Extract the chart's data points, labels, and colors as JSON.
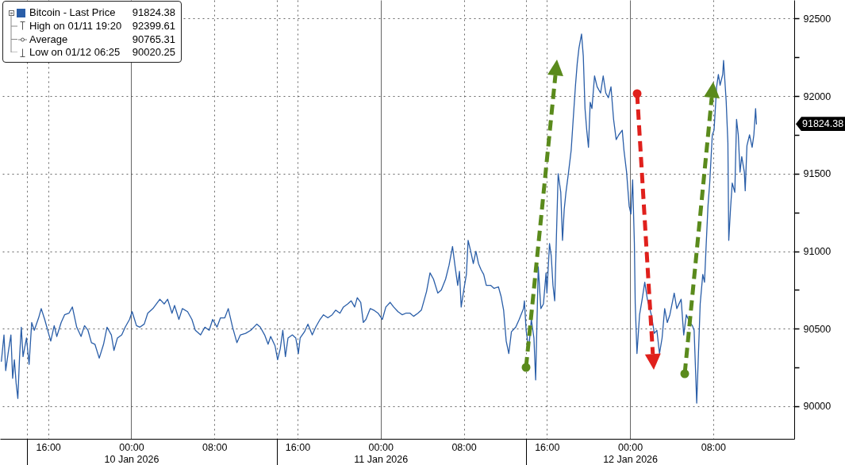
{
  "chart_data": {
    "type": "line",
    "x": [
      "2026-01-09T11:30",
      "2026-01-09T11:45",
      "2026-01-09T11:55",
      "2026-01-09T12:10",
      "2026-01-09T12:25",
      "2026-01-09T12:35",
      "2026-01-09T12:45",
      "2026-01-09T12:55",
      "2026-01-09T13:05",
      "2026-01-09T13:15",
      "2026-01-09T13:25",
      "2026-01-09T13:35",
      "2026-01-09T13:55",
      "2026-01-09T14:10",
      "2026-01-09T14:25",
      "2026-01-09T14:40",
      "2026-01-09T15:05",
      "2026-01-09T15:20",
      "2026-01-09T15:40",
      "2026-01-09T16:05",
      "2026-01-09T16:15",
      "2026-01-09T16:35",
      "2026-01-09T16:50",
      "2026-01-09T17:15",
      "2026-01-09T17:35",
      "2026-01-09T18:00",
      "2026-01-09T18:20",
      "2026-01-09T18:45",
      "2026-01-09T19:10",
      "2026-01-09T19:30",
      "2026-01-09T19:50",
      "2026-01-09T20:10",
      "2026-01-09T20:30",
      "2026-01-09T20:55",
      "2026-01-09T21:20",
      "2026-01-09T21:40",
      "2026-01-09T22:05",
      "2026-01-09T22:20",
      "2026-01-09T22:40",
      "2026-01-09T23:05",
      "2026-01-09T23:25",
      "2026-01-09T23:50",
      "2026-01-10T00:05",
      "2026-01-10T00:30",
      "2026-01-10T00:50",
      "2026-01-10T01:15",
      "2026-01-10T01:35",
      "2026-01-10T02:05",
      "2026-01-10T02:45",
      "2026-01-10T03:10",
      "2026-01-10T03:30",
      "2026-01-10T03:55",
      "2026-01-10T04:10",
      "2026-01-10T04:35",
      "2026-01-10T04:55",
      "2026-01-10T05:25",
      "2026-01-10T05:50",
      "2026-01-10T06:10",
      "2026-01-10T06:40",
      "2026-01-10T07:05",
      "2026-01-10T07:30",
      "2026-01-10T07:50",
      "2026-01-10T08:15",
      "2026-01-10T08:35",
      "2026-01-10T09:00",
      "2026-01-10T09:20",
      "2026-01-10T09:45",
      "2026-01-10T10:10",
      "2026-01-10T10:30",
      "2026-01-10T11:00",
      "2026-01-10T11:30",
      "2026-01-10T12:05",
      "2026-01-10T12:25",
      "2026-01-10T12:50",
      "2026-01-10T13:10",
      "2026-01-10T13:25",
      "2026-01-10T13:50",
      "2026-01-10T14:05",
      "2026-01-10T14:20",
      "2026-01-10T14:35",
      "2026-01-10T14:50",
      "2026-01-10T15:05",
      "2026-01-10T15:30",
      "2026-01-10T15:50",
      "2026-01-10T16:05",
      "2026-01-10T16:15",
      "2026-01-10T16:40",
      "2026-01-10T17:00",
      "2026-01-10T17:25",
      "2026-01-10T17:45",
      "2026-01-10T18:10",
      "2026-01-10T18:30",
      "2026-01-10T18:55",
      "2026-01-10T19:20",
      "2026-01-10T19:40",
      "2026-01-10T20:05",
      "2026-01-10T20:25",
      "2026-01-10T20:50",
      "2026-01-10T21:10",
      "2026-01-10T21:30",
      "2026-01-10T21:45",
      "2026-01-10T22:05",
      "2026-01-10T22:20",
      "2026-01-10T22:35",
      "2026-01-10T23:00",
      "2026-01-10T23:20",
      "2026-01-10T23:45",
      "2026-01-11T00:10",
      "2026-01-11T00:30",
      "2026-01-11T00:55",
      "2026-01-11T01:15",
      "2026-01-11T01:40",
      "2026-01-11T02:05",
      "2026-01-11T02:25",
      "2026-01-11T02:50",
      "2026-01-11T03:10",
      "2026-01-11T03:35",
      "2026-01-11T03:55",
      "2026-01-11T04:10",
      "2026-01-11T04:25",
      "2026-01-11T04:45",
      "2026-01-11T05:05",
      "2026-01-11T05:30",
      "2026-01-11T05:50",
      "2026-01-11T06:15",
      "2026-01-11T06:35",
      "2026-01-11T06:55",
      "2026-01-11T07:10",
      "2026-01-11T07:25",
      "2026-01-11T07:35",
      "2026-01-11T07:45",
      "2026-01-11T08:00",
      "2026-01-11T08:15",
      "2026-01-11T08:25",
      "2026-01-11T08:40",
      "2026-01-11T08:55",
      "2026-01-11T09:10",
      "2026-01-11T09:25",
      "2026-01-11T09:40",
      "2026-01-11T09:55",
      "2026-01-11T10:10",
      "2026-01-11T10:35",
      "2026-01-11T10:55",
      "2026-01-11T11:20",
      "2026-01-11T11:35",
      "2026-01-11T11:50",
      "2026-01-11T12:05",
      "2026-01-11T12:20",
      "2026-01-11T12:35",
      "2026-01-11T13:00",
      "2026-01-11T13:20",
      "2026-01-11T13:45",
      "2026-01-11T13:50",
      "2026-01-11T14:00",
      "2026-01-11T14:15",
      "2026-01-11T14:30",
      "2026-01-11T14:45",
      "2026-01-11T14:55",
      "2026-01-11T15:10",
      "2026-01-11T15:25",
      "2026-01-11T15:40",
      "2026-01-11T15:55",
      "2026-01-11T16:00",
      "2026-01-11T16:15",
      "2026-01-11T16:25",
      "2026-01-11T16:35",
      "2026-01-11T16:45",
      "2026-01-11T16:55",
      "2026-01-11T17:05",
      "2026-01-11T17:20",
      "2026-01-11T17:30",
      "2026-01-11T17:40",
      "2026-01-11T17:50",
      "2026-01-11T18:05",
      "2026-01-11T18:20",
      "2026-01-11T18:30",
      "2026-01-11T18:45",
      "2026-01-11T18:55",
      "2026-01-11T19:05",
      "2026-01-11T19:20",
      "2026-01-11T19:30",
      "2026-01-11T19:40",
      "2026-01-11T19:50",
      "2026-01-11T20:00",
      "2026-01-11T20:10",
      "2026-01-11T20:20",
      "2026-01-11T20:35",
      "2026-01-11T20:50",
      "2026-01-11T21:10",
      "2026-01-11T21:25",
      "2026-01-11T21:40",
      "2026-01-11T21:55",
      "2026-01-11T22:10",
      "2026-01-11T22:25",
      "2026-01-11T22:40",
      "2026-01-11T22:55",
      "2026-01-11T23:15",
      "2026-01-11T23:25",
      "2026-01-11T23:40",
      "2026-01-11T23:55",
      "2026-01-12T00:05",
      "2026-01-12T00:15",
      "2026-01-12T00:25",
      "2026-01-12T00:30",
      "2026-01-12T00:40",
      "2026-01-12T00:55",
      "2026-01-12T01:10",
      "2026-01-12T01:25",
      "2026-01-12T01:40",
      "2026-01-12T02:05",
      "2026-01-12T02:20",
      "2026-01-12T02:35",
      "2026-01-12T02:50",
      "2026-01-12T03:05",
      "2026-01-12T03:20",
      "2026-01-12T03:35",
      "2026-01-12T03:50",
      "2026-01-12T04:15",
      "2026-01-12T04:30",
      "2026-01-12T04:55",
      "2026-01-12T05:10",
      "2026-01-12T05:25",
      "2026-01-12T05:45",
      "2026-01-12T06:00",
      "2026-01-12T06:10",
      "2026-01-12T06:25",
      "2026-01-12T06:35",
      "2026-01-12T06:45",
      "2026-01-12T07:00",
      "2026-01-12T07:10",
      "2026-01-12T07:20",
      "2026-01-12T07:30",
      "2026-01-12T07:40",
      "2026-01-12T07:55",
      "2026-01-12T08:05",
      "2026-01-12T08:20",
      "2026-01-12T08:30",
      "2026-01-12T08:40",
      "2026-01-12T08:55",
      "2026-01-12T09:00",
      "2026-01-12T09:15",
      "2026-01-12T09:25",
      "2026-01-12T09:30",
      "2026-01-12T09:40",
      "2026-01-12T09:50",
      "2026-01-12T10:05",
      "2026-01-12T10:15",
      "2026-01-12T10:25",
      "2026-01-12T10:35",
      "2026-01-12T10:45",
      "2026-01-12T11:00",
      "2026-01-12T11:05",
      "2026-01-12T11:15",
      "2026-01-12T11:30",
      "2026-01-12T11:45",
      "2026-01-12T11:55",
      "2026-01-12T12:05",
      "2026-01-12T12:10"
    ],
    "series": [
      {
        "name": "Bitcoin - Last Price",
        "color": "#2a5ea8",
        "values": [
          90290,
          90460,
          90230,
          90350,
          90460,
          90180,
          90300,
          90150,
          90050,
          90320,
          90510,
          90320,
          90440,
          90270,
          90540,
          90490,
          90570,
          90630,
          90560,
          90460,
          90420,
          90520,
          90450,
          90540,
          90590,
          90600,
          90640,
          90510,
          90450,
          90520,
          90490,
          90410,
          90400,
          90310,
          90400,
          90510,
          90460,
          90360,
          90440,
          90460,
          90510,
          90560,
          90610,
          90520,
          90510,
          90530,
          90600,
          90630,
          90690,
          90660,
          90690,
          90600,
          90650,
          90560,
          90630,
          90610,
          90560,
          90490,
          90460,
          90510,
          90490,
          90560,
          90510,
          90570,
          90570,
          90630,
          90510,
          90410,
          90460,
          90470,
          90490,
          90530,
          90510,
          90460,
          90400,
          90450,
          90390,
          90300,
          90370,
          90490,
          90320,
          90440,
          90460,
          90440,
          90340,
          90440,
          90480,
          90530,
          90460,
          90510,
          90560,
          90590,
          90570,
          90590,
          90620,
          90600,
          90640,
          90660,
          90680,
          90640,
          90700,
          90670,
          90540,
          90560,
          90630,
          90620,
          90600,
          90560,
          90640,
          90670,
          90640,
          90610,
          90590,
          90600,
          90600,
          90580,
          90600,
          90620,
          90680,
          90740,
          90860,
          90820,
          90730,
          90750,
          90820,
          90910,
          91030,
          90900,
          90780,
          90870,
          90640,
          90750,
          90850,
          91070,
          91000,
          90920,
          91000,
          90920,
          90880,
          90850,
          90780,
          90780,
          90760,
          90770,
          90710,
          90620,
          90420,
          90340,
          90480,
          90510,
          90560,
          90630,
          90680,
          90490,
          90370,
          90560,
          90440,
          90170,
          90900,
          90630,
          90660,
          90860,
          90730,
          91050,
          90970,
          90780,
          90680,
          91100,
          91500,
          91380,
          91070,
          91270,
          91380,
          91510,
          91650,
          91820,
          92070,
          92210,
          92310,
          92400,
          92260,
          91920,
          91780,
          91670,
          91960,
          91920,
          92130,
          92060,
          92020,
          92130,
          92020,
          91990,
          92060,
          91850,
          91720,
          91750,
          91780,
          91650,
          91510,
          91290,
          91240,
          91460,
          91050,
          90660,
          90340,
          90590,
          90690,
          90800,
          90690,
          90580,
          90470,
          90490,
          90340,
          90440,
          90630,
          90540,
          90590,
          90730,
          90630,
          90690,
          90460,
          90590,
          90540,
          90520,
          90490,
          90020,
          90340,
          90660,
          90850,
          90800,
          91050,
          91290,
          91440,
          91750,
          91780,
          92060,
          92140,
          92070,
          92140,
          92230,
          91970,
          91700,
          91070,
          91270,
          91440,
          91380,
          91850,
          91750,
          91510,
          91610,
          91510,
          91390,
          91680,
          91750,
          91670,
          91750,
          91920,
          91820
        ]
      }
    ],
    "xlim": [
      "2026-01-09T11:22",
      "2026-01-12T15:48"
    ],
    "ylim": [
      89790,
      92620
    ],
    "xticks": [
      {
        "value": "2026-01-09T14:00",
        "label": null
      },
      {
        "value": "2026-01-09T16:00",
        "label": "16:00"
      },
      {
        "value": "2026-01-10T00:00",
        "label": "00:00\n10 Jan 2026"
      },
      {
        "value": "2026-01-10T08:00",
        "label": "08:00"
      },
      {
        "value": "2026-01-10T14:00",
        "label": null
      },
      {
        "value": "2026-01-10T16:00",
        "label": "16:00"
      },
      {
        "value": "2026-01-11T00:00",
        "label": "00:00\n11 Jan 2026"
      },
      {
        "value": "2026-01-11T08:00",
        "label": "08:00"
      },
      {
        "value": "2026-01-11T14:00",
        "label": null
      },
      {
        "value": "2026-01-11T16:00",
        "label": "16:00"
      },
      {
        "value": "2026-01-12T00:00",
        "label": "00:00\n12 Jan 2026"
      },
      {
        "value": "2026-01-12T08:00",
        "label": "08:00"
      }
    ],
    "yticks": [
      90000,
      {
        "value": 90250,
        "label": null
      },
      90500,
      {
        "value": 90750,
        "label": null
      },
      91000,
      {
        "value": 91250,
        "label": null
      },
      91500,
      {
        "value": 91750,
        "label": null
      },
      92000,
      {
        "value": 92250,
        "label": null
      },
      92500
    ],
    "grid": true,
    "legend": "top left",
    "annotations": [
      "91824.38",
      "High on 01/11 19:20 92399.61",
      "Average 90765.31",
      "Low on 01/12 06:25 90020.25"
    ]
  }
}
